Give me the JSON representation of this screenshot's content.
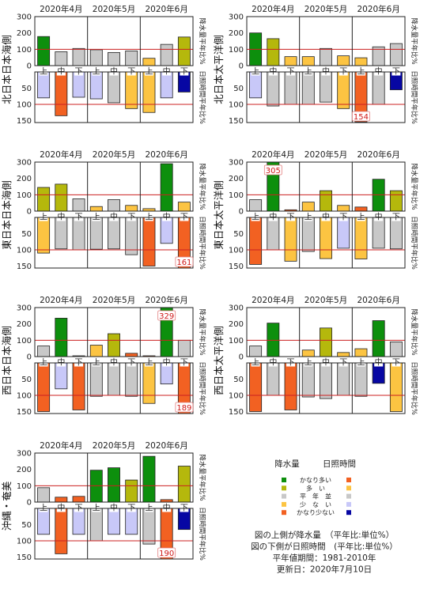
{
  "legend": {
    "header_precip": "降水量",
    "header_sun": "日照時間",
    "rows": [
      {
        "label": "かなり多い",
        "precip_color": "#0d8f0d",
        "sun_color": "#f26122"
      },
      {
        "label": "多　い",
        "precip_color": "#b5b80c",
        "sun_color": "#fcc442"
      },
      {
        "label": "平　年　並",
        "precip_color": "#c8c8c8",
        "sun_color": "#c8c8c8"
      },
      {
        "label": "少　な　い",
        "precip_color": "#fcc442",
        "sun_color": "#c8c8f8"
      },
      {
        "label": "かなり少ない",
        "precip_color": "#f26122",
        "sun_color": "#0707a3"
      }
    ]
  },
  "notes": [
    "図の上側が降水量　（平年比:単位%）",
    "図の下側が日照時間　(平年比:単位%）",
    "平年値期間：1981-2010年",
    "更新日：2020年7月10日"
  ],
  "chart_data": [
    {
      "type": "bar",
      "region": "北日本日本海側",
      "months": [
        "2020年4月",
        "2020年5月",
        "2020年6月"
      ],
      "categories": [
        "上",
        "中",
        "下",
        "上",
        "中",
        "下",
        "上",
        "中",
        "下"
      ],
      "precip_axis_label": "降水量平年比%",
      "sun_axis_label": "日照時間平年比%",
      "precip_ticks": [
        "0",
        "100",
        "200",
        "300"
      ],
      "sun_ticks": [
        "50",
        "100",
        "150"
      ],
      "precip_ylim": [
        0,
        300
      ],
      "sun_ylim": [
        0,
        150
      ],
      "reference": 100,
      "precip": {
        "values": [
          178,
          85,
          105,
          97,
          80,
          90,
          45,
          130,
          175
        ],
        "colors": [
          "#0d8f0d",
          "#c8c8c8",
          "#c8c8c8",
          "#c8c8c8",
          "#c8c8c8",
          "#c8c8c8",
          "#fcc442",
          "#c8c8c8",
          "#b5b80c"
        ]
      },
      "sun": {
        "values": [
          80,
          135,
          78,
          83,
          95,
          113,
          125,
          80,
          62
        ],
        "colors": [
          "#c8c8f8",
          "#f26122",
          "#c8c8f8",
          "#c8c8f8",
          "#c8c8c8",
          "#fcc442",
          "#fcc442",
          "#c8c8f8",
          "#0707a3"
        ]
      },
      "overflow_labels": []
    },
    {
      "type": "bar",
      "region": "北日本太平洋側",
      "months": [
        "2020年4月",
        "2020年5月",
        "2020年6月"
      ],
      "categories": [
        "上",
        "中",
        "下",
        "上",
        "中",
        "下",
        "上",
        "中",
        "下"
      ],
      "precip_axis_label": "降水量平年比%",
      "sun_axis_label": "日照時間平年比%",
      "precip_ticks": [
        "0",
        "100",
        "200",
        "300"
      ],
      "sun_ticks": [
        "50",
        "100",
        "150"
      ],
      "precip_ylim": [
        0,
        300
      ],
      "sun_ylim": [
        0,
        150
      ],
      "reference": 100,
      "precip": {
        "values": [
          200,
          165,
          55,
          55,
          105,
          60,
          48,
          115,
          135
        ],
        "colors": [
          "#0d8f0d",
          "#b5b80c",
          "#fcc442",
          "#fcc442",
          "#c8c8c8",
          "#fcc442",
          "#fcc442",
          "#c8c8c8",
          "#c8c8c8"
        ]
      },
      "sun": {
        "values": [
          80,
          105,
          100,
          100,
          93,
          113,
          154,
          100,
          55
        ],
        "colors": [
          "#c8c8f8",
          "#c8c8c8",
          "#c8c8c8",
          "#c8c8c8",
          "#c8c8c8",
          "#fcc442",
          "#f26122",
          "#c8c8c8",
          "#0707a3"
        ]
      },
      "overflow_labels": [
        {
          "panel": "sun",
          "index": 6,
          "text": "154"
        }
      ]
    },
    {
      "type": "bar",
      "region": "東日本日本海側",
      "months": [
        "2020年4月",
        "2020年5月",
        "2020年6月"
      ],
      "categories": [
        "上",
        "中",
        "下",
        "上",
        "中",
        "下",
        "上",
        "中",
        "下"
      ],
      "precip_axis_label": "降水量平年比%",
      "sun_axis_label": "日照時間平年比%",
      "precip_ticks": [
        "0",
        "100",
        "200",
        "300"
      ],
      "sun_ticks": [
        "50",
        "100",
        "150"
      ],
      "precip_ylim": [
        0,
        300
      ],
      "sun_ylim": [
        0,
        150
      ],
      "reference": 100,
      "precip": {
        "values": [
          145,
          165,
          75,
          28,
          70,
          35,
          15,
          290,
          55
        ],
        "colors": [
          "#b5b80c",
          "#b5b80c",
          "#c8c8c8",
          "#fcc442",
          "#c8c8c8",
          "#fcc442",
          "#fcc442",
          "#0d8f0d",
          "#fcc442"
        ]
      },
      "sun": {
        "values": [
          110,
          97,
          100,
          98,
          97,
          115,
          150,
          80,
          161
        ],
        "colors": [
          "#fcc442",
          "#c8c8c8",
          "#c8c8c8",
          "#c8c8c8",
          "#c8c8c8",
          "#c8c8c8",
          "#f26122",
          "#c8c8f8",
          "#f26122"
        ]
      },
      "overflow_labels": [
        {
          "panel": "sun",
          "index": 8,
          "text": "161"
        }
      ]
    },
    {
      "type": "bar",
      "region": "東日本太平洋側",
      "months": [
        "2020年4月",
        "2020年5月",
        "2020年6月"
      ],
      "categories": [
        "上",
        "中",
        "下",
        "上",
        "中",
        "下",
        "上",
        "中",
        "下"
      ],
      "precip_axis_label": "降水量平年比%",
      "sun_axis_label": "日照時間平年比%",
      "precip_ticks": [
        "0",
        "100",
        "200",
        "300"
      ],
      "sun_ticks": [
        "50",
        "100",
        "150"
      ],
      "precip_ylim": [
        0,
        300
      ],
      "sun_ylim": [
        0,
        150
      ],
      "reference": 100,
      "precip": {
        "values": [
          70,
          305,
          8,
          55,
          125,
          35,
          25,
          195,
          125
        ],
        "colors": [
          "#c8c8c8",
          "#0d8f0d",
          "#f26122",
          "#fcc442",
          "#b5b80c",
          "#fcc442",
          "#f26122",
          "#0d8f0d",
          "#b5b80c"
        ]
      },
      "sun": {
        "values": [
          145,
          100,
          135,
          105,
          127,
          95,
          128,
          95,
          97
        ],
        "colors": [
          "#f26122",
          "#c8c8c8",
          "#fcc442",
          "#c8c8c8",
          "#fcc442",
          "#c8c8f8",
          "#fcc442",
          "#c8c8c8",
          "#c8c8c8"
        ]
      },
      "overflow_labels": [
        {
          "panel": "precip",
          "index": 1,
          "text": "305"
        }
      ]
    },
    {
      "type": "bar",
      "region": "西日本日本海側",
      "months": [
        "2020年4月",
        "2020年5月",
        "2020年6月"
      ],
      "categories": [
        "上",
        "中",
        "下",
        "上",
        "中",
        "下",
        "上",
        "中",
        "下"
      ],
      "precip_axis_label": "降水量平年比%",
      "sun_axis_label": "日照時間平年比%",
      "precip_ticks": [
        "0",
        "100",
        "200",
        "300"
      ],
      "sun_ticks": [
        "50",
        "100",
        "150"
      ],
      "precip_ylim": [
        0,
        300
      ],
      "sun_ylim": [
        0,
        150
      ],
      "reference": 100,
      "precip": {
        "values": [
          65,
          235,
          5,
          70,
          140,
          20,
          5,
          329,
          100
        ],
        "colors": [
          "#c8c8c8",
          "#0d8f0d",
          "#c8c8c8",
          "#fcc442",
          "#b5b80c",
          "#f26122",
          "#f26122",
          "#0d8f0d",
          "#c8c8c8"
        ]
      },
      "sun": {
        "values": [
          150,
          80,
          145,
          103,
          100,
          103,
          125,
          65,
          189
        ],
        "colors": [
          "#f26122",
          "#c8c8f8",
          "#f26122",
          "#c8c8c8",
          "#c8c8c8",
          "#c8c8c8",
          "#fcc442",
          "#c8c8f8",
          "#f26122"
        ]
      },
      "overflow_labels": [
        {
          "panel": "precip",
          "index": 7,
          "text": "329"
        },
        {
          "panel": "sun",
          "index": 8,
          "text": "189"
        }
      ]
    },
    {
      "type": "bar",
      "region": "西日本太平洋側",
      "months": [
        "2020年4月",
        "2020年5月",
        "2020年6月"
      ],
      "categories": [
        "上",
        "中",
        "下",
        "上",
        "中",
        "下",
        "上",
        "中",
        "下"
      ],
      "precip_axis_label": "降水量平年比%",
      "sun_axis_label": "日照時間平年比%",
      "precip_ticks": [
        "0",
        "100",
        "200",
        "300"
      ],
      "sun_ticks": [
        "50",
        "100",
        "150"
      ],
      "precip_ylim": [
        0,
        300
      ],
      "sun_ylim": [
        0,
        150
      ],
      "reference": 100,
      "precip": {
        "values": [
          65,
          205,
          0,
          40,
          175,
          25,
          48,
          220,
          90
        ],
        "colors": [
          "#c8c8c8",
          "#0d8f0d",
          "#c8c8c8",
          "#fcc442",
          "#b5b80c",
          "#fcc442",
          "#fcc442",
          "#0d8f0d",
          "#c8c8c8"
        ]
      },
      "sun": {
        "values": [
          150,
          100,
          145,
          105,
          110,
          100,
          103,
          63,
          150
        ],
        "colors": [
          "#f26122",
          "#c8c8c8",
          "#f26122",
          "#c8c8c8",
          "#c8c8c8",
          "#c8c8c8",
          "#c8c8c8",
          "#0707a3",
          "#fcc442"
        ]
      },
      "overflow_labels": []
    },
    {
      "type": "bar",
      "region": "沖縄・奄美",
      "months": [
        "2020年4月",
        "2020年5月",
        "2020年6月"
      ],
      "categories": [
        "上",
        "中",
        "下",
        "上",
        "中",
        "下",
        "上",
        "中",
        "下"
      ],
      "precip_axis_label": "降水量平年比%",
      "sun_axis_label": "日照時間平年比%",
      "precip_ticks": [
        "0",
        "100",
        "200",
        "300"
      ],
      "sun_ticks": [
        "50",
        "100",
        "150"
      ],
      "precip_ylim": [
        0,
        300
      ],
      "sun_ylim": [
        0,
        150
      ],
      "reference": 100,
      "precip": {
        "values": [
          88,
          30,
          35,
          195,
          210,
          135,
          280,
          15,
          220
        ],
        "colors": [
          "#c8c8c8",
          "#f26122",
          "#f26122",
          "#0d8f0d",
          "#0d8f0d",
          "#b5b80c",
          "#0d8f0d",
          "#f26122",
          "#b5b80c"
        ]
      },
      "sun": {
        "values": [
          80,
          140,
          80,
          100,
          80,
          80,
          110,
          190,
          65
        ],
        "colors": [
          "#c8c8f8",
          "#f26122",
          "#c8c8f8",
          "#c8c8c8",
          "#c8c8f8",
          "#c8c8f8",
          "#c8c8c8",
          "#f26122",
          "#0707a3"
        ]
      },
      "overflow_labels": [
        {
          "panel": "sun",
          "index": 7,
          "text": "190"
        }
      ]
    }
  ]
}
